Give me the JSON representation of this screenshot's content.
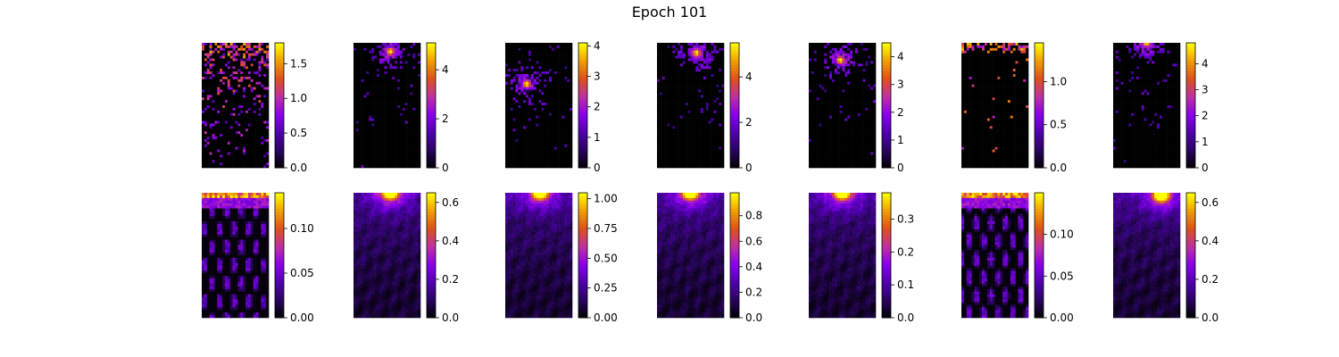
{
  "title": "Epoch 101",
  "colormap": {
    "name": "gnuplot",
    "stops": [
      "#000000",
      "#2a0560",
      "#5000b0",
      "#8a00ee",
      "#c030a0",
      "#e0501c",
      "#f0a000",
      "#ffff00"
    ]
  },
  "chart_data": {
    "type": "heatmap",
    "layout": {
      "rows": 2,
      "cols": 7
    },
    "panels": [
      {
        "row": 0,
        "col": 0,
        "pattern": "sparse-scatter",
        "vmin": 0,
        "vmax": 1.8,
        "ticks": [
          "0.0",
          "0.5",
          "1.0",
          "1.5"
        ],
        "tick_values": [
          0,
          0.5,
          1.0,
          1.5
        ]
      },
      {
        "row": 0,
        "col": 1,
        "pattern": "hotspot",
        "hotspot": [
          0.55,
          0.07
        ],
        "vmin": 0,
        "vmax": 5.1,
        "ticks": [
          "0",
          "2",
          "4"
        ],
        "tick_values": [
          0,
          2,
          4
        ]
      },
      {
        "row": 0,
        "col": 2,
        "pattern": "hotspot",
        "hotspot": [
          0.32,
          0.33
        ],
        "vmin": 0,
        "vmax": 4.1,
        "ticks": [
          "0",
          "1",
          "2",
          "3",
          "4"
        ],
        "tick_values": [
          0,
          1,
          2,
          3,
          4
        ]
      },
      {
        "row": 0,
        "col": 3,
        "pattern": "hotspot",
        "hotspot": [
          0.59,
          0.08
        ],
        "vmin": 0,
        "vmax": 5.5,
        "ticks": [
          "0",
          "2",
          "4"
        ],
        "tick_values": [
          0,
          2,
          4
        ]
      },
      {
        "row": 0,
        "col": 4,
        "pattern": "hotspot",
        "hotspot": [
          0.47,
          0.14
        ],
        "vmin": 0,
        "vmax": 4.5,
        "ticks": [
          "0",
          "1",
          "2",
          "3",
          "4"
        ],
        "tick_values": [
          0,
          1,
          2,
          3,
          4
        ]
      },
      {
        "row": 0,
        "col": 5,
        "pattern": "sparse-top",
        "vmin": 0,
        "vmax": 1.45,
        "ticks": [
          "0.0",
          "0.5",
          "1.0"
        ],
        "tick_values": [
          0,
          0.5,
          1.0
        ]
      },
      {
        "row": 0,
        "col": 6,
        "pattern": "hotspot-edge",
        "hotspot": [
          0.5,
          0.0
        ],
        "vmin": 0,
        "vmax": 4.8,
        "ticks": [
          "0",
          "1",
          "2",
          "3",
          "4"
        ],
        "tick_values": [
          0,
          1,
          2,
          3,
          4
        ]
      },
      {
        "row": 1,
        "col": 0,
        "pattern": "smooth-top-band",
        "vmin": 0,
        "vmax": 0.14,
        "ticks": [
          "0.00",
          "0.05",
          "0.10"
        ],
        "tick_values": [
          0,
          0.05,
          0.1
        ]
      },
      {
        "row": 1,
        "col": 1,
        "pattern": "smooth-spot",
        "hotspot": [
          0.55,
          0.0
        ],
        "vmin": 0,
        "vmax": 0.65,
        "ticks": [
          "0.0",
          "0.2",
          "0.4",
          "0.6"
        ],
        "tick_values": [
          0,
          0.2,
          0.4,
          0.6
        ]
      },
      {
        "row": 1,
        "col": 2,
        "pattern": "smooth-spot",
        "hotspot": [
          0.52,
          0.0
        ],
        "vmin": 0,
        "vmax": 1.05,
        "ticks": [
          "0.00",
          "0.25",
          "0.50",
          "0.75",
          "1.00"
        ],
        "tick_values": [
          0,
          0.25,
          0.5,
          0.75,
          1.0
        ]
      },
      {
        "row": 1,
        "col": 3,
        "pattern": "smooth-spot",
        "hotspot": [
          0.5,
          0.0
        ],
        "vmin": 0,
        "vmax": 0.98,
        "ticks": [
          "0.0",
          "0.2",
          "0.4",
          "0.6",
          "0.8"
        ],
        "tick_values": [
          0,
          0.2,
          0.4,
          0.6,
          0.8
        ]
      },
      {
        "row": 1,
        "col": 4,
        "pattern": "smooth-spot",
        "hotspot": [
          0.5,
          0.0
        ],
        "vmin": 0,
        "vmax": 0.38,
        "ticks": [
          "0.0",
          "0.1",
          "0.2",
          "0.3"
        ],
        "tick_values": [
          0,
          0.1,
          0.2,
          0.3
        ]
      },
      {
        "row": 1,
        "col": 5,
        "pattern": "smooth-top-band",
        "vmin": 0,
        "vmax": 0.15,
        "ticks": [
          "0.00",
          "0.05",
          "0.10"
        ],
        "tick_values": [
          0,
          0.05,
          0.1
        ]
      },
      {
        "row": 1,
        "col": 6,
        "pattern": "smooth-spot",
        "hotspot": [
          0.72,
          0.02
        ],
        "vmin": 0,
        "vmax": 0.65,
        "ticks": [
          "0.0",
          "0.2",
          "0.4",
          "0.6"
        ],
        "tick_values": [
          0,
          0.2,
          0.4,
          0.6
        ]
      }
    ]
  }
}
